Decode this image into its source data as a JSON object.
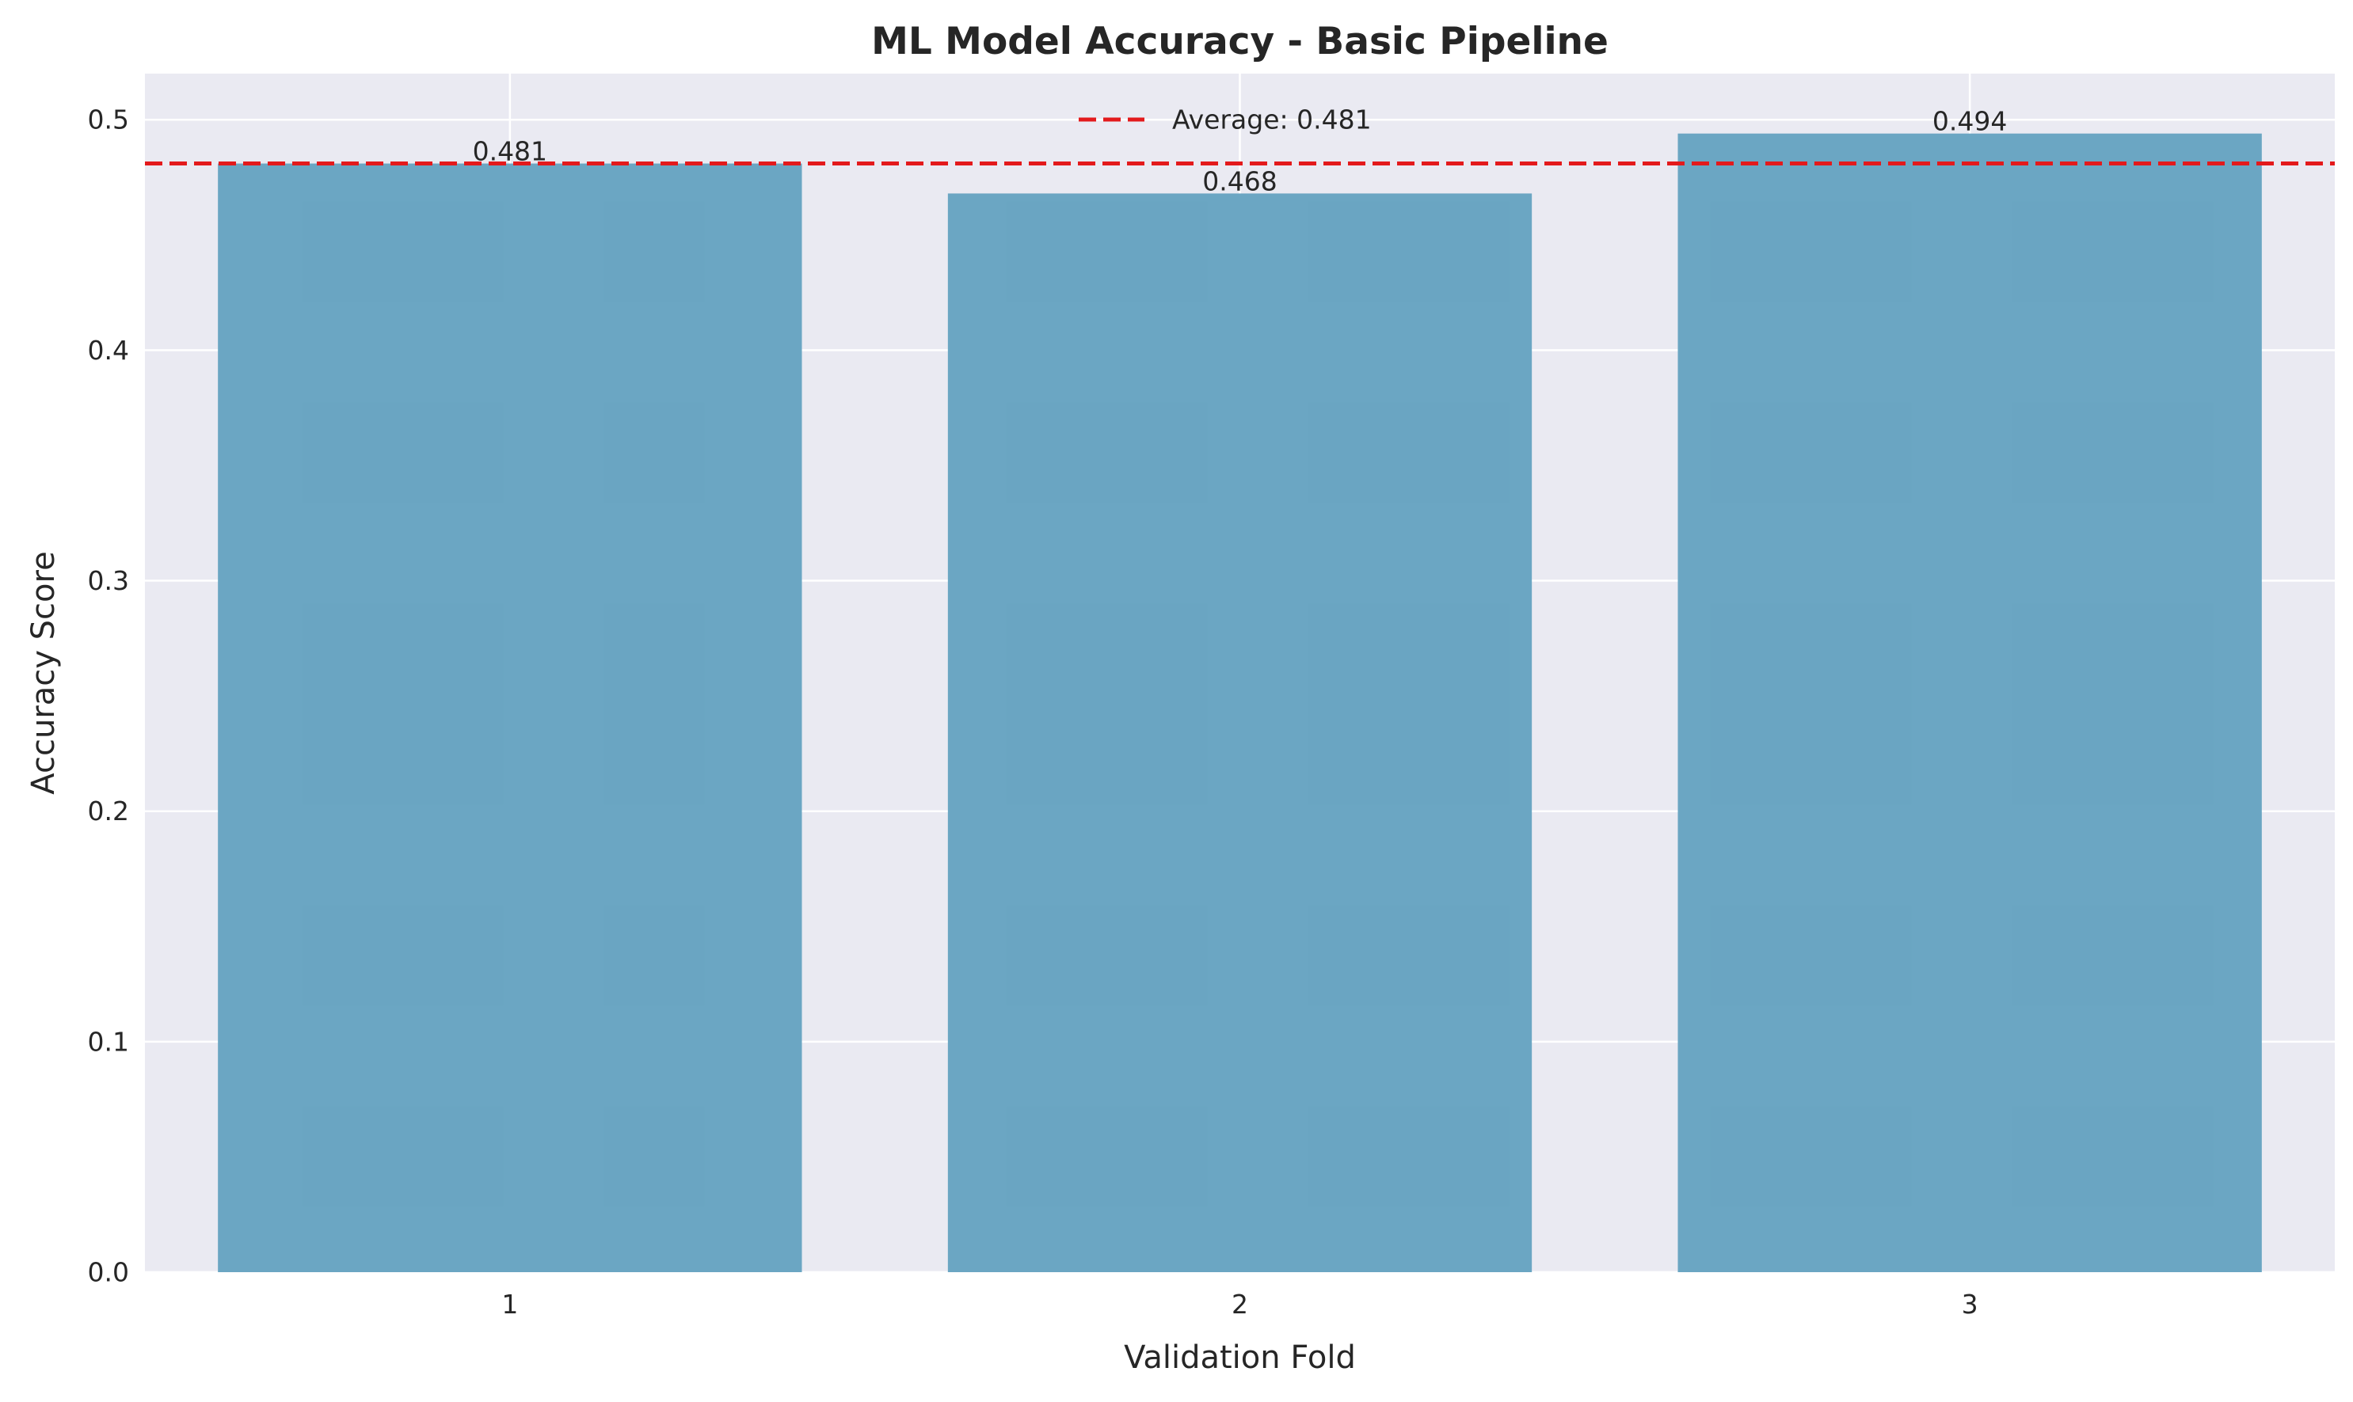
{
  "chart_data": {
    "type": "bar",
    "title": "ML Model Accuracy - Basic Pipeline",
    "xlabel": "Validation Fold",
    "ylabel": "Accuracy Score",
    "categories": [
      "1",
      "2",
      "3"
    ],
    "values": [
      0.481,
      0.468,
      0.494
    ],
    "value_labels": [
      "0.481",
      "0.468",
      "0.494"
    ],
    "ylim": [
      0,
      0.52
    ],
    "yticks": [
      0.0,
      0.1,
      0.2,
      0.3,
      0.4,
      0.5
    ],
    "ytick_labels": [
      "0.0",
      "0.1",
      "0.2",
      "0.3",
      "0.4",
      "0.5"
    ],
    "grid": true,
    "reference_line": {
      "style": "dashed",
      "value": 0.481,
      "label": "Average: 0.481"
    },
    "legend_location": "top-center",
    "colors": {
      "bar": "#66a3c1",
      "average_line": "#e31a1c",
      "plot_background": "#eaeaf2",
      "grid": "#ffffff",
      "text": "#262626"
    }
  }
}
